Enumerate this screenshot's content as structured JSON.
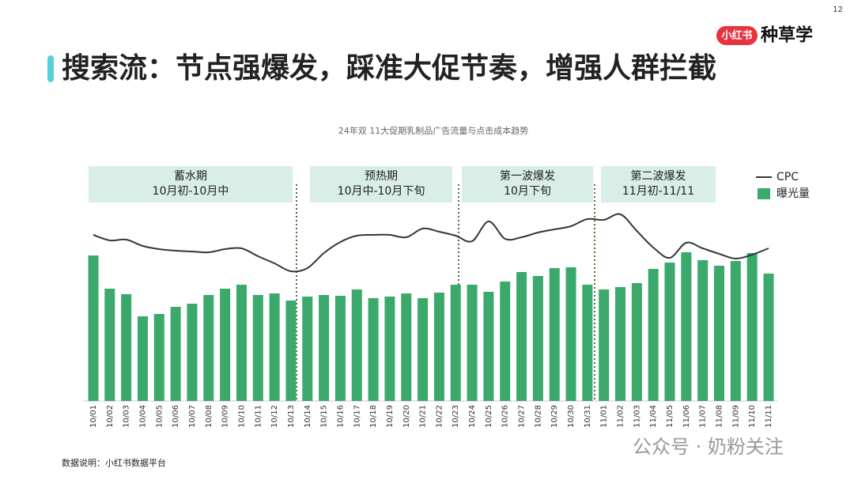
{
  "page_number": "12",
  "logo": {
    "badge": "小红书",
    "text": "种草学"
  },
  "title": "搜索流：节点强爆发，踩准大促节奏，增强人群拦截",
  "chart_data": {
    "type": "combo",
    "title": "24年双 11大促期乳制品广告流量与点击成本趋势",
    "categories": [
      "10/01",
      "10/02",
      "10/03",
      "10/04",
      "10/05",
      "10/06",
      "10/07",
      "10/08",
      "10/09",
      "10/10",
      "10/11",
      "10/12",
      "10/13",
      "10/14",
      "10/15",
      "10/16",
      "10/17",
      "10/18",
      "10/19",
      "10/20",
      "10/21",
      "10/22",
      "10/23",
      "10/24",
      "10/25",
      "10/26",
      "10/27",
      "10/28",
      "10/29",
      "10/30",
      "10/31",
      "11/01",
      "11/02",
      "11/03",
      "11/04",
      "11/05",
      "11/06",
      "11/07",
      "11/08",
      "11/09",
      "11/10",
      "11/11"
    ],
    "series": [
      {
        "name": "CPC",
        "type": "line",
        "color": "#2e3a33",
        "values": [
          210,
          203,
          204,
          196,
          192,
          190,
          189,
          188,
          192,
          193,
          183,
          174,
          164,
          168,
          187,
          201,
          209,
          210,
          210,
          207,
          218,
          214,
          209,
          202,
          227,
          205,
          207,
          213,
          217,
          221,
          230,
          229,
          236,
          215,
          194,
          181,
          200,
          193,
          186,
          180,
          185,
          193
        ]
      },
      {
        "name": "曝光量",
        "type": "bar",
        "color": "#3aa96b",
        "values": [
          184,
          142,
          135,
          107,
          110,
          119,
          123,
          134,
          142,
          147,
          134,
          136,
          127,
          132,
          134,
          133,
          141,
          130,
          132,
          136,
          130,
          137,
          147,
          147,
          138,
          151,
          163,
          158,
          168,
          169,
          147,
          141,
          144,
          149,
          167,
          175,
          188,
          178,
          171,
          177,
          187,
          161
        ]
      }
    ],
    "phases": [
      {
        "lines": [
          "蓄水期",
          "10月初-10月中"
        ]
      },
      {
        "lines": [
          "预热期",
          "10月中-10月下旬"
        ]
      },
      {
        "lines": [
          "第一波爆发",
          "10月下旬"
        ]
      },
      {
        "lines": [
          "第二波爆发",
          "11月初-11/11"
        ]
      }
    ],
    "legend": "right"
  },
  "source": "数据说明：小红书数据平台",
  "watermark": "公众号 · 奶粉关注"
}
